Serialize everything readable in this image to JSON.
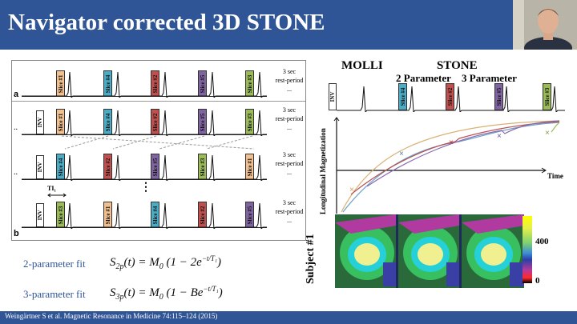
{
  "slide": {
    "title": "Navigator corrected 3D STONE",
    "footer": "Weingärtner S et al. Magnetic Resonance in Medicine 74:115–124 (2015)"
  },
  "left_diagram": {
    "panel_a_letter": "a",
    "panel_b_letter": "b",
    "rest_line1": "3 sec",
    "rest_line2": "rest-period",
    "ellipsis": "...",
    "row_a_slices": [
      "Slice #1",
      "Slice #4",
      "Slice #2",
      "Slice #5",
      "Slice #3"
    ],
    "row_b1_slices": [
      "Slice #1",
      "Slice #4",
      "Slice #2",
      "Slice #5",
      "Slice #3"
    ],
    "row_b2_slices": [
      "Slice #4",
      "Slice #2",
      "Slice #5",
      "Slice #3",
      "Slice #1"
    ],
    "row_b3_slices": [
      "Slice #3",
      "Slice #1",
      "Slice #4",
      "Slice #2",
      "Slice #5"
    ],
    "inv_label": "INV",
    "ti_label": "TI₁",
    "leading_dots": "..",
    "vertical_dots": "⋮",
    "slice_colors": {
      "Slice #1": "#f2c08e",
      "Slice #2": "#c0504d",
      "Slice #3": "#9bbb59",
      "Slice #4": "#4bacc6",
      "Slice #5": "#8064a2"
    }
  },
  "fits": {
    "two_param_label": "2-parameter fit",
    "three_param_label": "3-parameter fit"
  },
  "right_figure": {
    "molli_label": "MOLLI",
    "stone_label": "STONE",
    "two_param_header": "2 Parameter",
    "three_param_header": "3 Parameter",
    "inv_label": "INV",
    "seq_slices": [
      "Slice #4",
      "Slice #2",
      "Slice #5",
      "Slice #3"
    ],
    "y_axis_label": "Longitudinal Magnetization",
    "x_axis_label": "Time",
    "subject_label": "Subject #1",
    "colorbar_max": "400",
    "colorbar_min": "0"
  }
}
